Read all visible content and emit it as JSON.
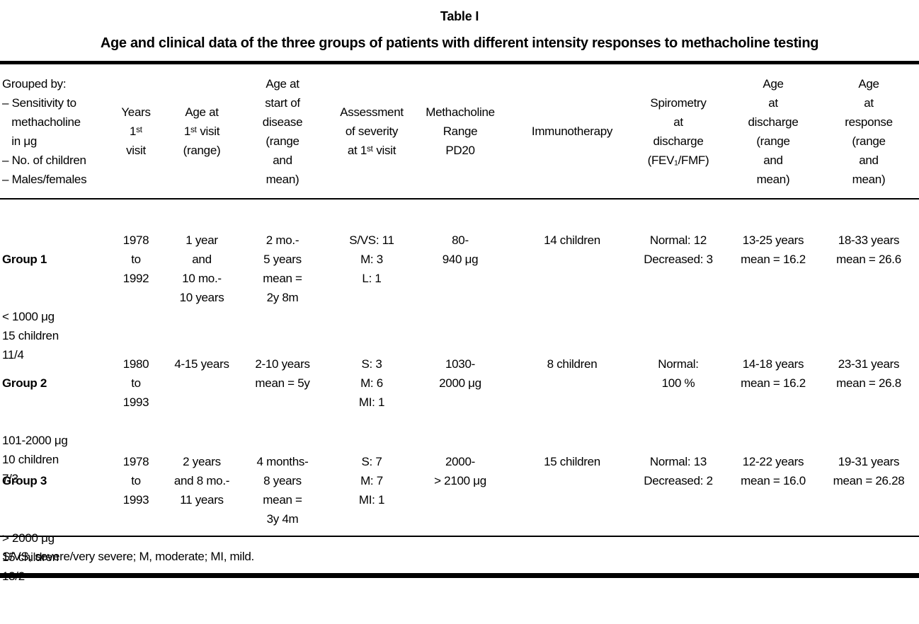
{
  "title": "Table I",
  "subtitle": "Age and clinical data of the three groups of patients with different intensity responses to methacholine testing",
  "table": {
    "headers": [
      "Grouped by:\n– Sensitivity to\n   methacholine\n   in μg\n– No. of children\n– Males/females",
      "Years\n1ˢᵗ\nvisit",
      "Age at\n1ˢᵗ visit\n(range)",
      "Age at\nstart of\ndisease\n(range\nand\nmean)",
      "Assessment\nof severity\nat 1ˢᵗ visit",
      "Methacholine\nRange\nPD20",
      "Immunotherapy",
      "Spirometry\nat\ndischarge\n(FEV₁/FMF)",
      "Age\nat\ndischarge\n(range\nand\nmean)",
      "Age\nat\nresponse\n(range\nand\nmean)"
    ],
    "rows": [
      {
        "group": "Group 1",
        "cells": [
          "< 1000 μg\n15 children\n11/4",
          "1978\nto\n1992",
          "1 year\nand\n10 mo.-\n10 years",
          "2 mo.-\n5 years\nmean =\n2y 8m",
          "S/VS: 11\nM: 3\nL: 1",
          "80-\n940 μg",
          "14 children",
          "Normal: 12\nDecreased: 3",
          "13-25 years\nmean = 16.2",
          "18-33 years\nmean = 26.6"
        ]
      },
      {
        "group": "Group 2",
        "cells": [
          "101-2000 μg\n10 children\n7/3",
          "1980\nto\n1993",
          "4-15 years",
          "2-10 years\nmean = 5y",
          "S: 3\nM: 6\nMI: 1",
          "1030-\n2000 μg",
          "8 children",
          "Normal:\n100 %",
          "14-18 years\nmean = 16.2",
          "23-31 years\nmean = 26.8"
        ]
      },
      {
        "group": "Group 3",
        "cells": [
          "> 2000 μg\n15 children\n13/2",
          "1978\nto\n1993",
          "2 years\nand 8 mo.-\n11 years",
          "4 months-\n8 years\nmean =\n3y 4m",
          "S: 7\nM: 7\nMI: 1",
          "2000-\n> 2100 μg",
          "15 children",
          "Normal: 13\nDecreased: 2",
          "12-22 years\nmean = 16.0",
          "19-31 years\nmean = 26.28"
        ]
      }
    ],
    "footnote": "S/VS, severe/very severe; M, moderate; MI, mild."
  }
}
